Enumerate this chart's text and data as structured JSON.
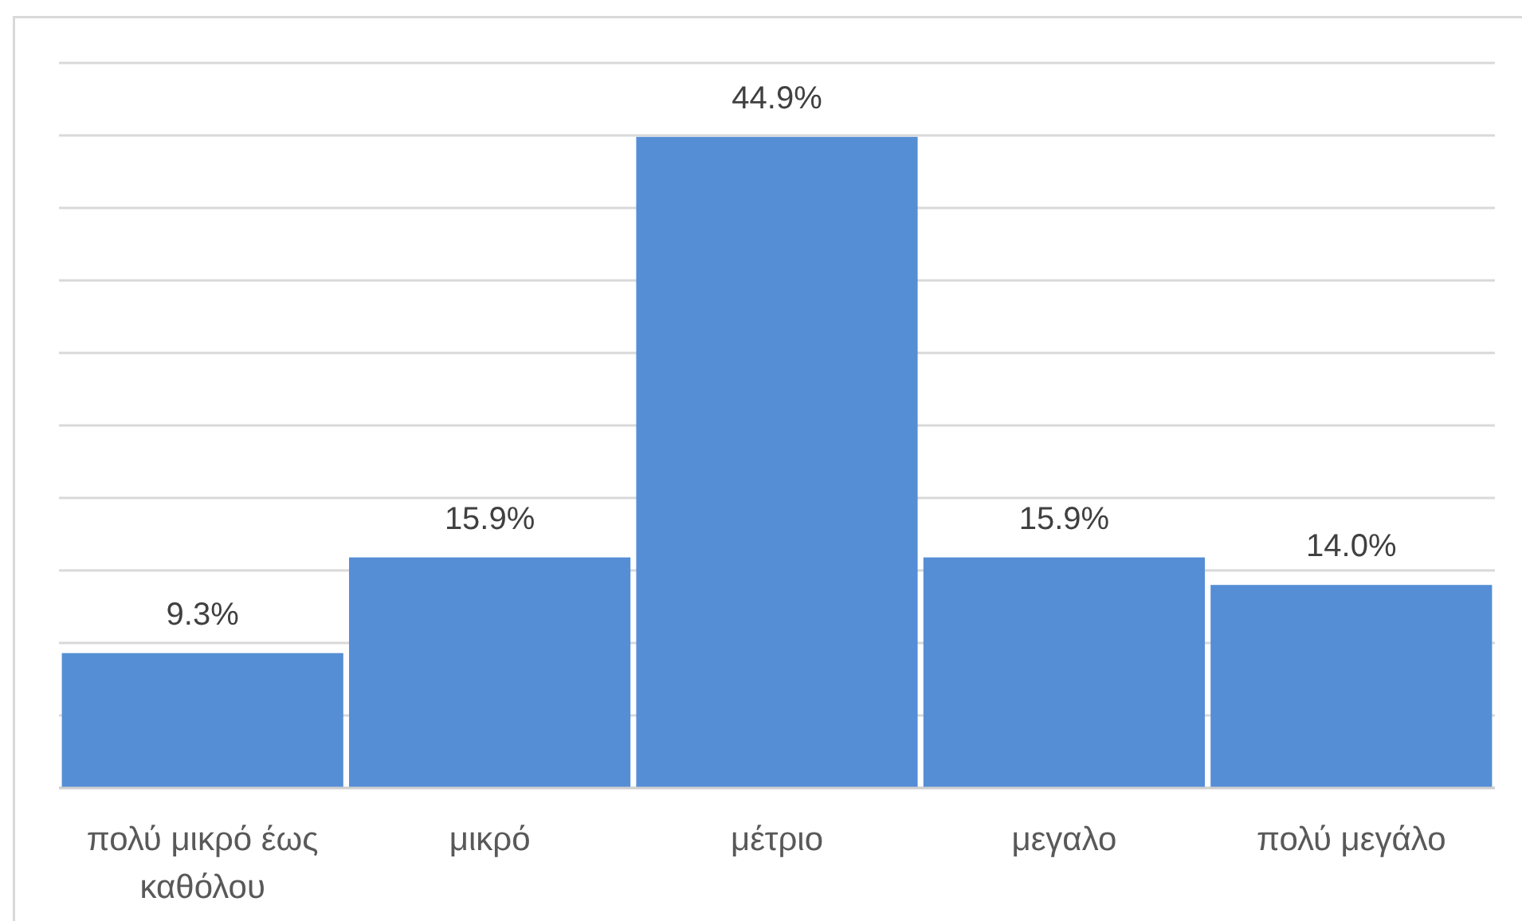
{
  "chart_data": {
    "type": "bar",
    "categories": [
      "πολύ μικρό έως καθόλου",
      "μικρό",
      "μέτριο",
      "μεγαλο",
      "πολύ μεγάλο"
    ],
    "values": [
      9.3,
      15.9,
      44.9,
      15.9,
      14.0
    ],
    "value_labels": [
      "9.3%",
      "15.9%",
      "44.9%",
      "15.9%",
      "14.0%"
    ],
    "color": "#558ed5",
    "ylim": [
      0,
      50
    ],
    "yticks": [
      {
        "value": 0,
        "label": null
      },
      {
        "value": 5,
        "label": null
      },
      {
        "value": 10,
        "label": null
      },
      {
        "value": 15,
        "label": null
      },
      {
        "value": 20,
        "label": null
      },
      {
        "value": 25,
        "label": null
      },
      {
        "value": 30,
        "label": null
      },
      {
        "value": 35,
        "label": null
      },
      {
        "value": 40,
        "label": null
      },
      {
        "value": 45,
        "label": null
      },
      {
        "value": 50,
        "label": null
      }
    ],
    "grid": "y",
    "tick_labels": "x"
  }
}
